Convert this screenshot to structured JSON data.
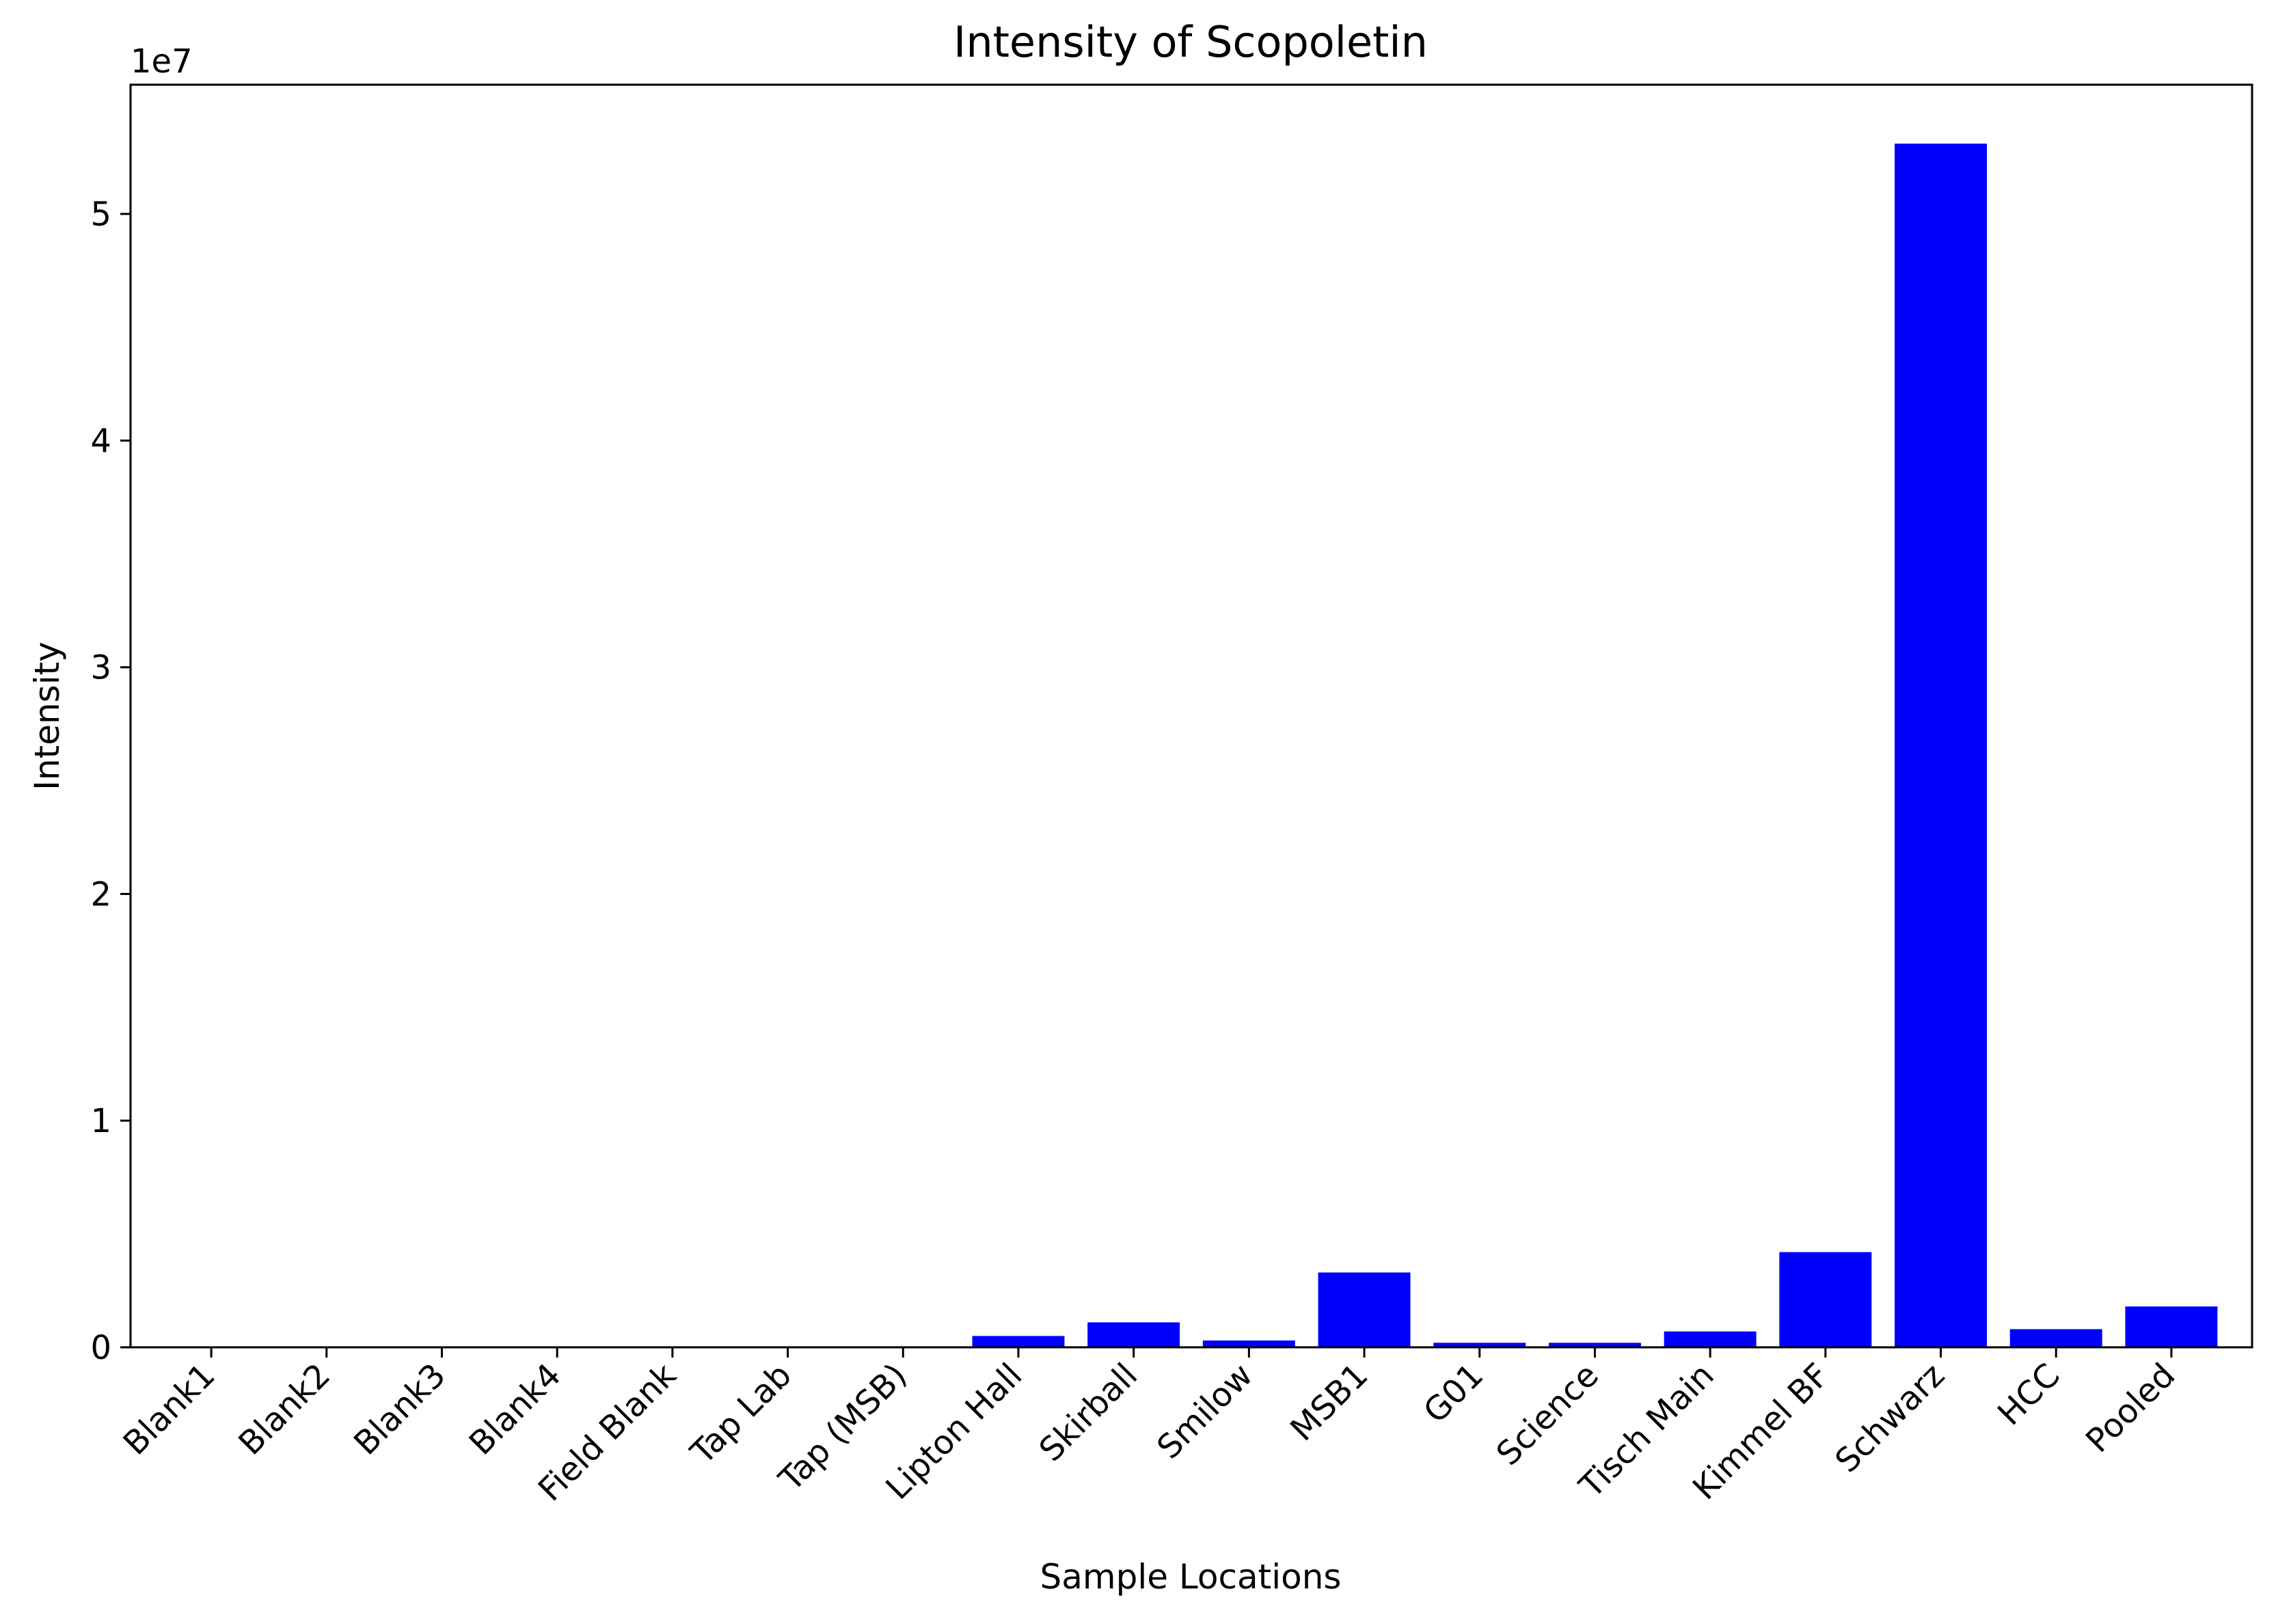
{
  "chart_data": {
    "type": "bar",
    "title": "Intensity of Scopoletin",
    "xlabel": "Sample Locations",
    "ylabel": "Intensity",
    "offset_label": "1e7",
    "categories": [
      "Blank1",
      "Blank2",
      "Blank3",
      "Blank4",
      "Field Blank",
      "Tap Lab",
      "Tap (MSB)",
      "Lipton Hall",
      "Skirball",
      "Smilow",
      "MSB1",
      "G01",
      "Science",
      "Tisch Main",
      "Kimmel BF",
      "Schwarz",
      "HCC",
      "Pooled"
    ],
    "values": [
      0,
      0,
      0,
      0,
      0,
      0,
      0,
      500000,
      1100000,
      300000,
      3300000,
      200000,
      200000,
      700000,
      4200000,
      53100000,
      800000,
      1800000
    ],
    "ylim": [
      0,
      55700000
    ],
    "yticks": [
      0,
      10000000,
      20000000,
      30000000,
      40000000,
      50000000
    ],
    "ytick_labels": [
      "0",
      "1",
      "2",
      "3",
      "4",
      "5"
    ],
    "bar_color": "#0000ff",
    "grid": false,
    "legend": "none"
  }
}
